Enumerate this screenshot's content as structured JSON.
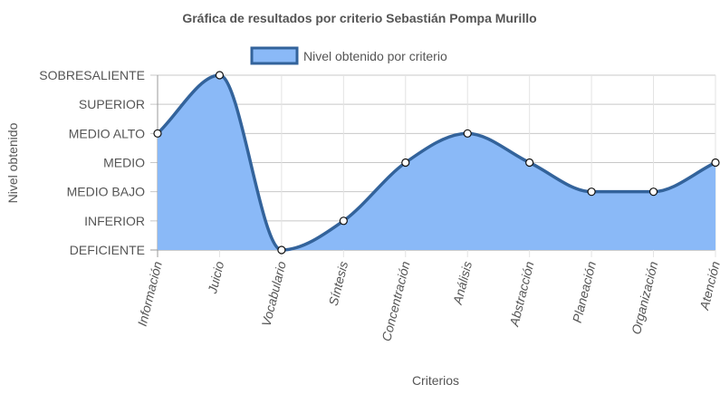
{
  "chart_data": {
    "type": "area",
    "title": "Gráfica de resultados por criterio Sebastián Pompa Murillo",
    "xlabel": "Criterios",
    "ylabel": "Nivel obtenido",
    "legend_position": "top",
    "grid": true,
    "categories": [
      "Información",
      "Juicio",
      "Vocabulario",
      "Síntesis",
      "Concentración",
      "Análisis",
      "Abstracción",
      "Planeación",
      "Organización",
      "Atención"
    ],
    "y_levels": [
      "DEFICIENTE",
      "INFERIOR",
      "MEDIO BAJO",
      "MEDIO",
      "MEDIO ALTO",
      "SUPERIOR",
      "SOBRESALIENTE"
    ],
    "ylim": [
      0,
      6
    ],
    "series": [
      {
        "name": "Nivel obtenido por criterio",
        "values": [
          4,
          6,
          0,
          1,
          3,
          4,
          3,
          2,
          2,
          3
        ],
        "line_color": "#33639b",
        "fill_color": "#8ab9f7"
      }
    ]
  }
}
